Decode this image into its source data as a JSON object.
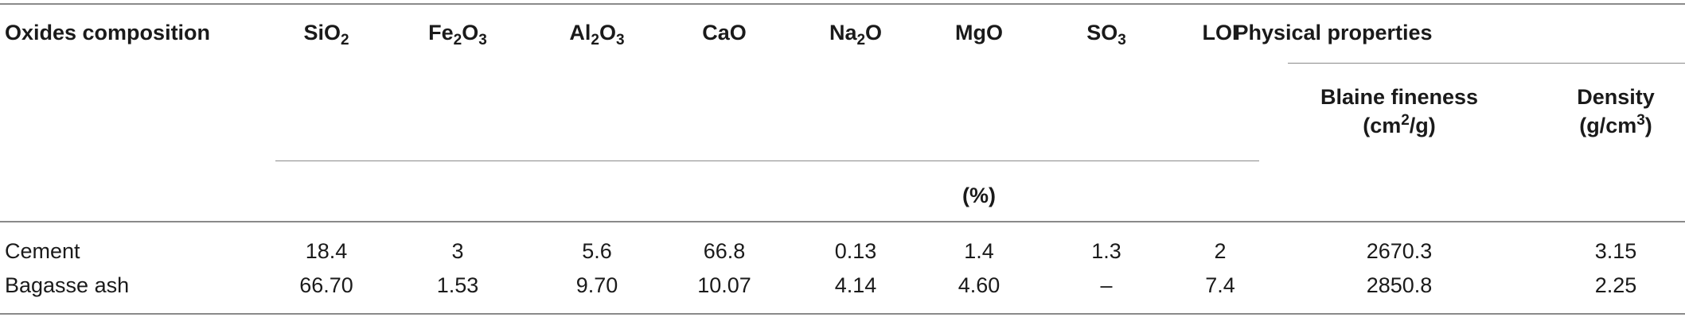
{
  "table": {
    "header": {
      "first_col": "Oxides composition",
      "oxides": [
        {
          "base": "SiO",
          "sub": "2",
          "tail": ""
        },
        {
          "base": "Fe",
          "sub": "2",
          "tail": "O",
          "sub2": "3"
        },
        {
          "base": "Al",
          "sub": "2",
          "tail": "O",
          "sub2": "3"
        },
        {
          "base": "CaO",
          "sub": "",
          "tail": ""
        },
        {
          "base": "Na",
          "sub": "2",
          "tail": "O"
        },
        {
          "base": "MgO",
          "sub": "",
          "tail": ""
        },
        {
          "base": "SO",
          "sub": "3",
          "tail": ""
        },
        {
          "base": "LOI",
          "sub": "",
          "tail": ""
        }
      ],
      "physical_group": "Physical properties",
      "blaine": {
        "line1": "Blaine fineness",
        "line2_pre": "(cm",
        "line2_sup": "2",
        "line2_post": "/g)"
      },
      "density": {
        "line1": "Density",
        "line2_pre": "(g/cm",
        "line2_sup": "3",
        "line2_post": ")"
      },
      "unit": "(%)"
    },
    "rows": [
      {
        "label": "Cement",
        "values": [
          "18.4",
          "3",
          "5.6",
          "66.8",
          "0.13",
          "1.4",
          "1.3",
          "2"
        ],
        "blaine": "2670.3",
        "density": "3.15"
      },
      {
        "label": "Bagasse ash",
        "values": [
          "66.70",
          "1.53",
          "9.70",
          "10.07",
          "4.14",
          "4.60",
          "–",
          "7.4"
        ],
        "blaine": "2850.8",
        "density": "2.25"
      }
    ]
  }
}
